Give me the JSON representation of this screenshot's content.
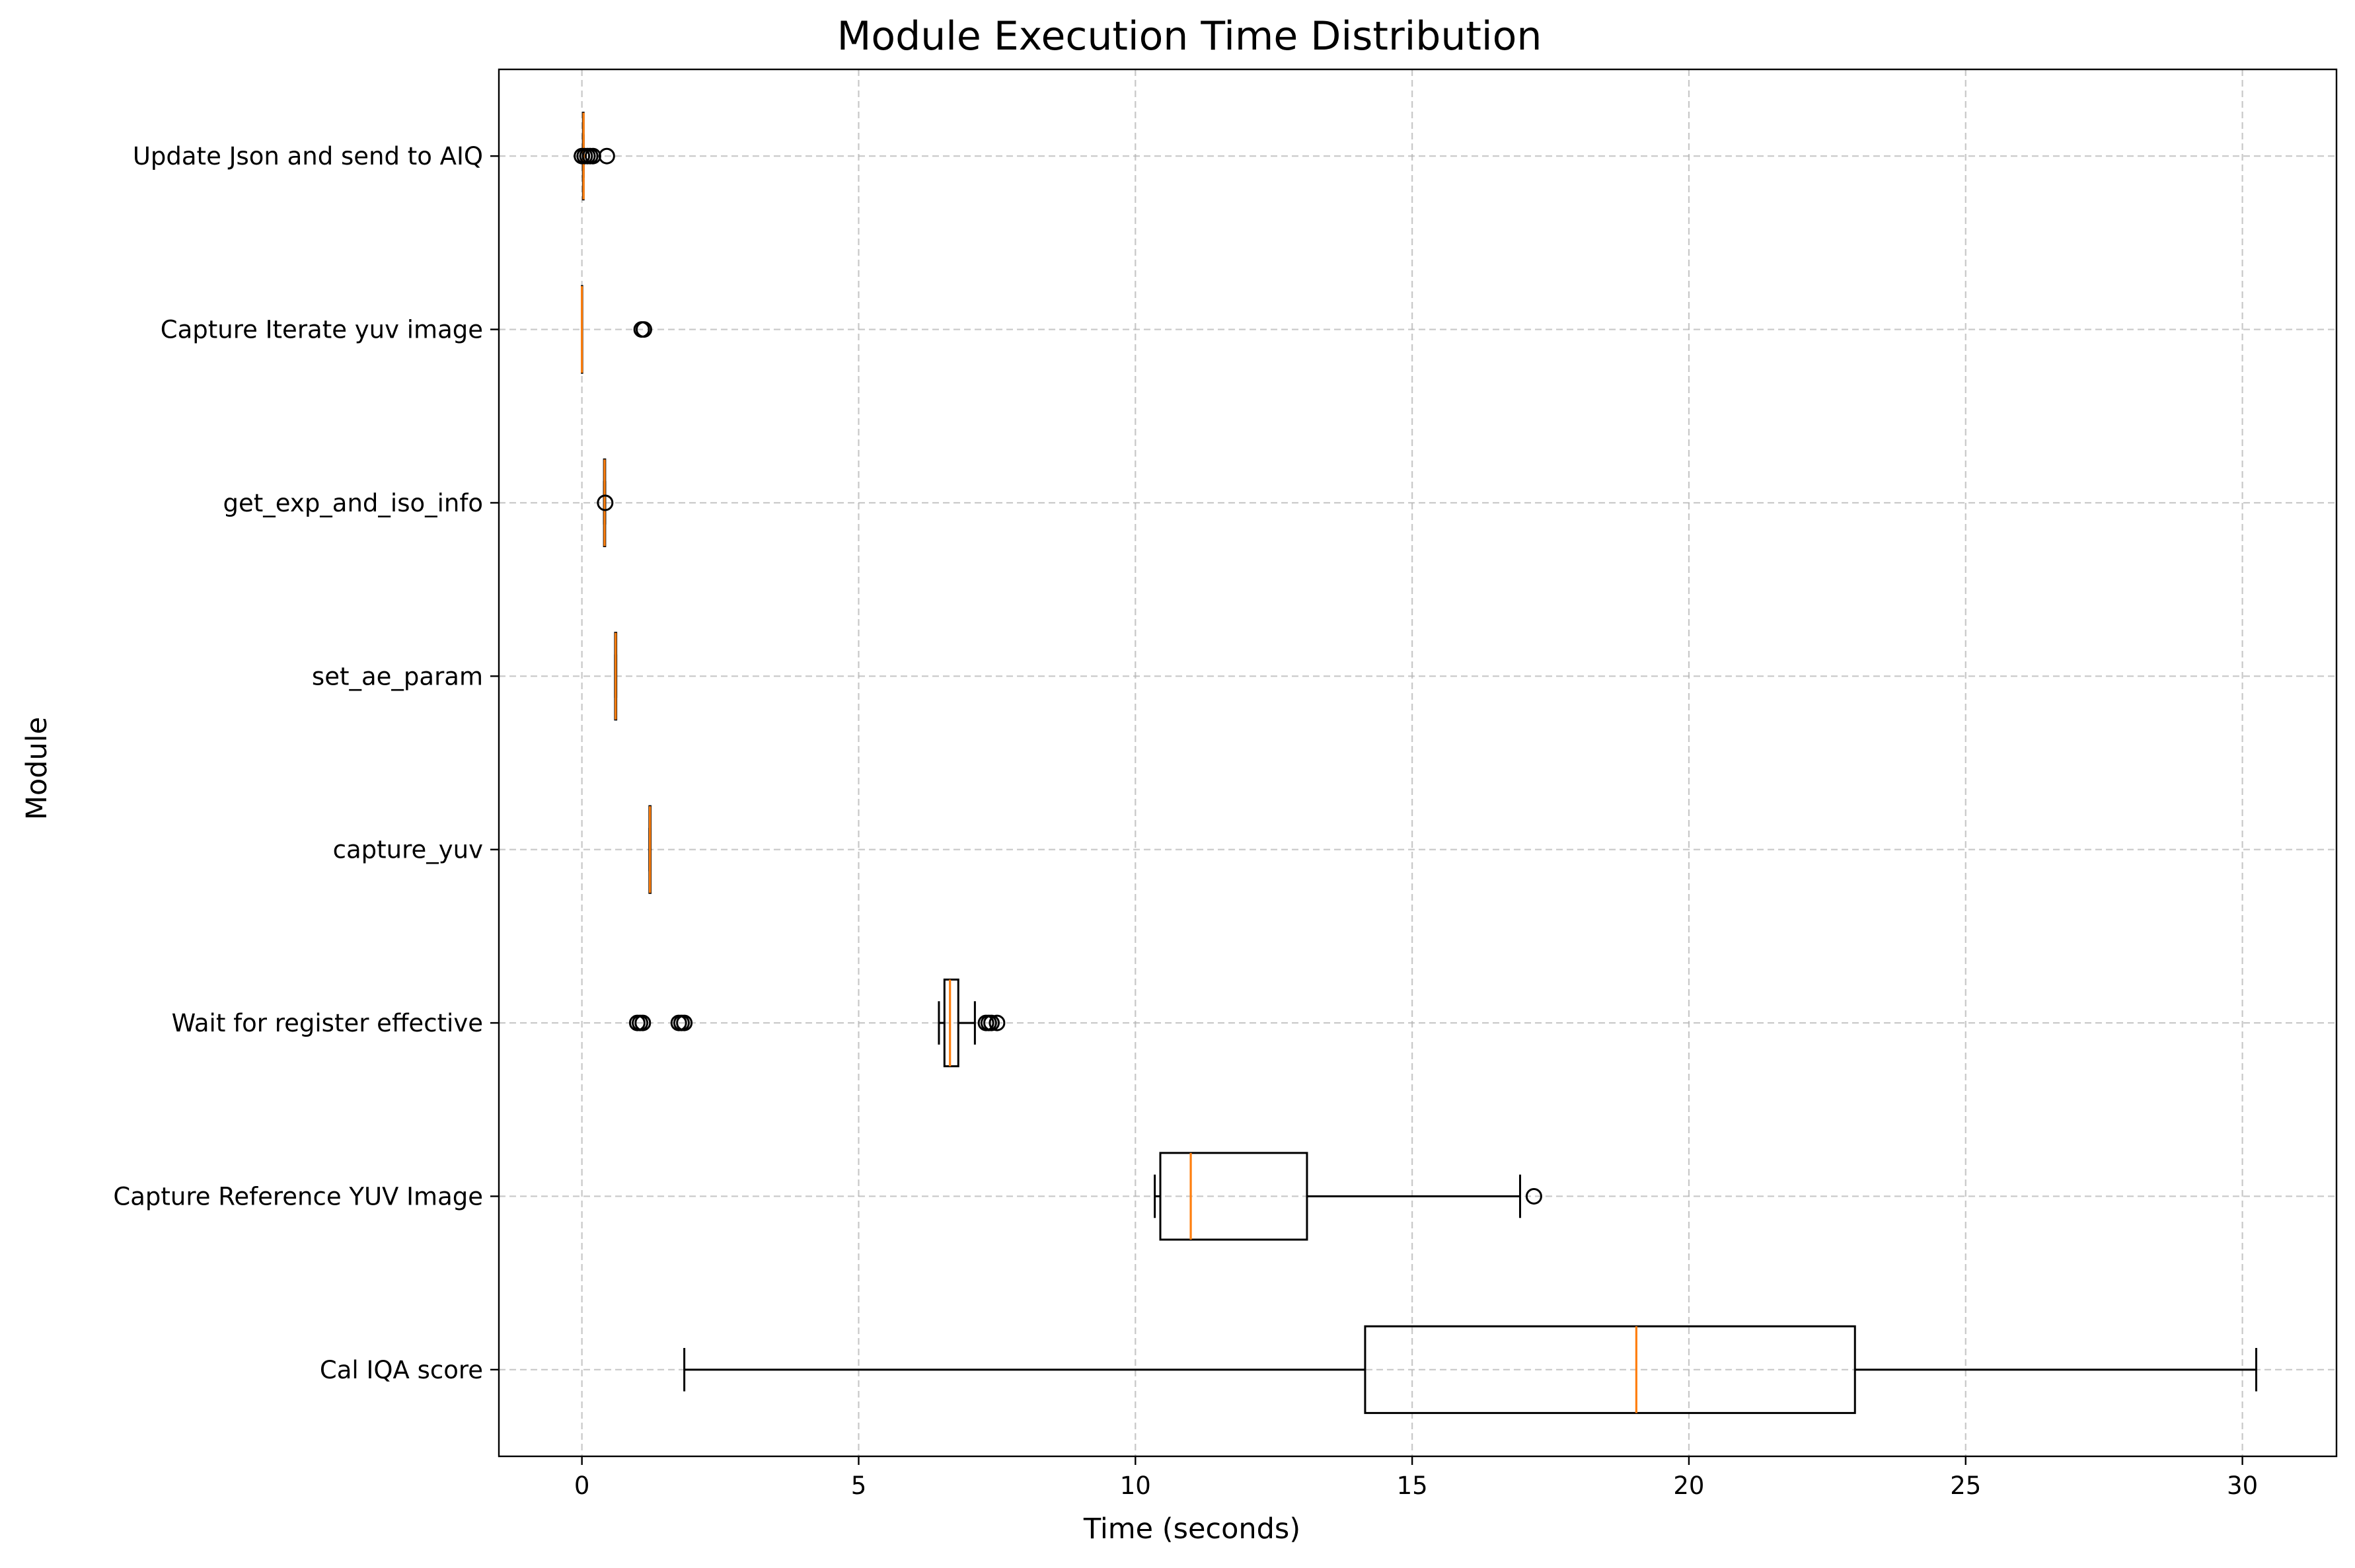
{
  "chart_data": {
    "type": "box",
    "orientation": "horizontal",
    "title": "Module Execution Time Distribution",
    "xlabel": "Time (seconds)",
    "ylabel": "Module",
    "xlim": [
      -1.5,
      31.7
    ],
    "xticks": [
      0,
      5,
      10,
      15,
      20,
      25,
      30
    ],
    "grid": true,
    "colors": {
      "box": "#000000",
      "median": "#ff7f0e",
      "grid": "#b0b0b0"
    },
    "categories": [
      "Cal IQA score",
      "Capture Reference YUV Image",
      "Wait for register effective",
      "capture_yuv",
      "set_ae_param",
      "get_exp_and_iso_info",
      "Capture Iterate yuv image",
      "Update Json and send to AIQ"
    ],
    "boxes": [
      {
        "label": "Cal IQA score",
        "whisker_low": 1.85,
        "q1": 14.15,
        "median": 19.05,
        "q3": 23.0,
        "whisker_high": 30.25,
        "outliers": []
      },
      {
        "label": "Capture Reference YUV Image",
        "whisker_low": 10.35,
        "q1": 10.45,
        "median": 11.0,
        "q3": 13.1,
        "whisker_high": 16.95,
        "outliers": [
          17.2
        ]
      },
      {
        "label": "Wait for register effective",
        "whisker_low": 6.45,
        "q1": 6.55,
        "median": 6.65,
        "q3": 6.8,
        "whisker_high": 7.1,
        "outliers": [
          1.0,
          1.05,
          1.1,
          1.75,
          1.8,
          1.85,
          7.3,
          7.35,
          7.4,
          7.5
        ]
      },
      {
        "label": "capture_yuv",
        "whisker_low": 1.22,
        "q1": 1.22,
        "median": 1.23,
        "q3": 1.24,
        "whisker_high": 1.24,
        "outliers": []
      },
      {
        "label": "set_ae_param",
        "whisker_low": 0.6,
        "q1": 0.6,
        "median": 0.61,
        "q3": 0.62,
        "whisker_high": 0.62,
        "outliers": []
      },
      {
        "label": "get_exp_and_iso_info",
        "whisker_low": 0.4,
        "q1": 0.4,
        "median": 0.41,
        "q3": 0.42,
        "whisker_high": 0.42,
        "outliers": [
          0.42
        ]
      },
      {
        "label": "Capture Iterate yuv image",
        "whisker_low": 0.0,
        "q1": 0.0,
        "median": 0.0,
        "q3": 0.0,
        "whisker_high": 0.0,
        "outliers": [
          1.08,
          1.12
        ]
      },
      {
        "label": "Update Json and send to AIQ",
        "whisker_low": 0.02,
        "q1": 0.02,
        "median": 0.03,
        "q3": 0.03,
        "whisker_high": 0.03,
        "outliers": [
          0.0,
          0.05,
          0.1,
          0.15,
          0.2,
          0.45
        ]
      }
    ]
  }
}
